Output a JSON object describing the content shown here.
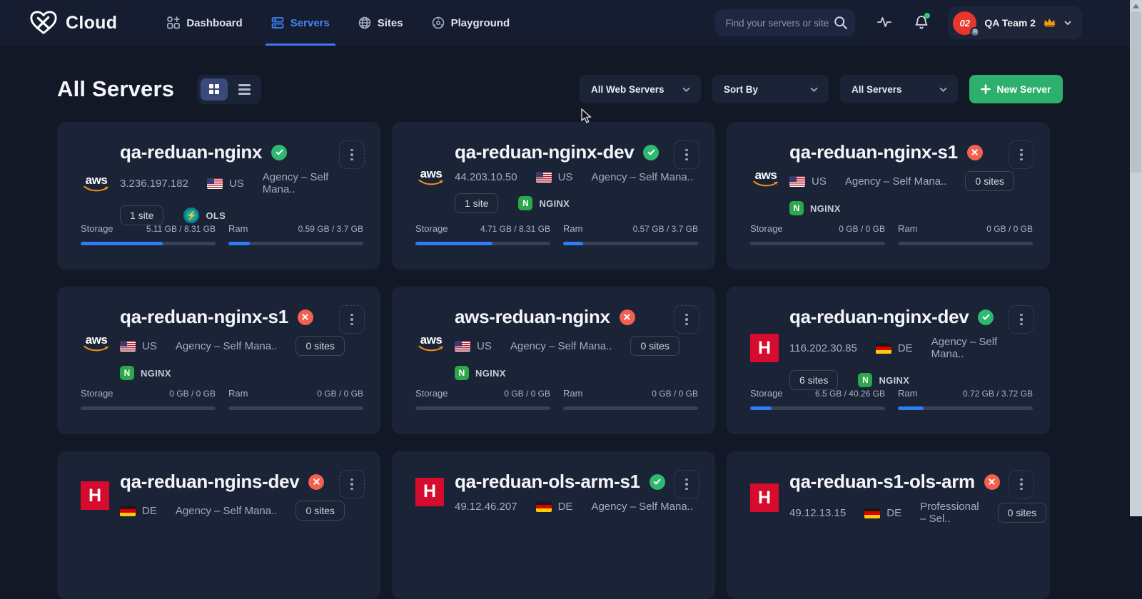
{
  "topbar": {
    "brand": "Cloud",
    "nav": [
      {
        "label": "Dashboard",
        "active": false
      },
      {
        "label": "Servers",
        "active": true
      },
      {
        "label": "Sites",
        "active": false
      },
      {
        "label": "Playground",
        "active": false
      }
    ],
    "search_placeholder": "Find your servers or sites",
    "team": {
      "avatar_text": "02",
      "avatar_badge": "R",
      "name": "QA Team 2"
    }
  },
  "header": {
    "title": "All Servers"
  },
  "filters": {
    "web_servers_label": "All Web Servers",
    "sort_by_label": "Sort By",
    "all_servers_label": "All Servers",
    "new_server_label": "New Server"
  },
  "colors": {
    "accent_blue": "#3c7ef8",
    "progress_blue": "#2e7df6",
    "success_green": "#2eb872",
    "error_red": "#f4604f",
    "button_green": "#2eb06d",
    "hetzner_red": "#d50c2d",
    "card_bg": "#1b2337",
    "page_bg": "#121826"
  },
  "cards": [
    {
      "provider": "aws",
      "logo_text": "aws",
      "name": "qa-reduan-nginx",
      "status": "ok",
      "ip": "3.236.197.182",
      "country": "US",
      "flag": "us",
      "plan": "Agency – Self Mana..",
      "meta_sites": null,
      "badge_sites": "1 site",
      "server_badge": {
        "type": "ols",
        "label": "OLS"
      },
      "storage": {
        "label": "Storage",
        "value": "5.11 GB / 8.31 GB",
        "pct": 61
      },
      "ram": {
        "label": "Ram",
        "value": "0.59 GB / 3.7 GB",
        "pct": 16
      }
    },
    {
      "provider": "aws",
      "logo_text": "aws",
      "name": "qa-reduan-nginx-dev",
      "status": "ok",
      "ip": "44.203.10.50",
      "country": "US",
      "flag": "us",
      "plan": "Agency – Self Mana..",
      "meta_sites": null,
      "badge_sites": "1 site",
      "server_badge": {
        "type": "nginx",
        "label": "NGINX"
      },
      "storage": {
        "label": "Storage",
        "value": "4.71 GB / 8.31 GB",
        "pct": 57
      },
      "ram": {
        "label": "Ram",
        "value": "0.57 GB / 3.7 GB",
        "pct": 15
      }
    },
    {
      "provider": "aws",
      "logo_text": "aws",
      "name": "qa-reduan-nginx-s1",
      "status": "error",
      "ip": null,
      "country": "US",
      "flag": "us",
      "plan": "Agency – Self Mana..",
      "meta_sites": "0 sites",
      "badge_sites": null,
      "server_badge": {
        "type": "nginx",
        "label": "NGINX"
      },
      "storage": {
        "label": "Storage",
        "value": "0 GB / 0 GB",
        "pct": 0
      },
      "ram": {
        "label": "Ram",
        "value": "0 GB / 0 GB",
        "pct": 0
      }
    },
    {
      "provider": "aws",
      "logo_text": "aws",
      "name": "qa-reduan-nginx-s1",
      "status": "error",
      "ip": null,
      "country": "US",
      "flag": "us",
      "plan": "Agency – Self Mana..",
      "meta_sites": "0 sites",
      "badge_sites": null,
      "server_badge": {
        "type": "nginx",
        "label": "NGINX"
      },
      "storage": {
        "label": "Storage",
        "value": "0 GB / 0 GB",
        "pct": 0
      },
      "ram": {
        "label": "Ram",
        "value": "0 GB / 0 GB",
        "pct": 0
      }
    },
    {
      "provider": "aws",
      "logo_text": "aws",
      "name": "aws-reduan-nginx",
      "status": "error",
      "ip": null,
      "country": "US",
      "flag": "us",
      "plan": "Agency – Self Mana..",
      "meta_sites": "0 sites",
      "badge_sites": null,
      "server_badge": {
        "type": "nginx",
        "label": "NGINX"
      },
      "storage": {
        "label": "Storage",
        "value": "0 GB / 0 GB",
        "pct": 0
      },
      "ram": {
        "label": "Ram",
        "value": "0 GB / 0 GB",
        "pct": 0
      }
    },
    {
      "provider": "hetzner",
      "logo_text": "H",
      "name": "qa-reduan-nginx-dev",
      "status": "ok",
      "ip": "116.202.30.85",
      "country": "DE",
      "flag": "de",
      "plan": "Agency – Self Mana..",
      "meta_sites": null,
      "badge_sites": "6 sites",
      "server_badge": {
        "type": "nginx",
        "label": "NGINX"
      },
      "storage": {
        "label": "Storage",
        "value": "6.5 GB / 40.26 GB",
        "pct": 16
      },
      "ram": {
        "label": "Ram",
        "value": "0.72 GB / 3.72 GB",
        "pct": 19
      }
    },
    {
      "provider": "hetzner",
      "logo_text": "H",
      "name": "qa-reduan-ngins-dev",
      "status": "error",
      "ip": null,
      "country": "DE",
      "flag": "de",
      "plan": "Agency – Self Mana..",
      "meta_sites": "0 sites",
      "badge_sites": null,
      "server_badge": null,
      "storage": null,
      "ram": null
    },
    {
      "provider": "hetzner",
      "logo_text": "H",
      "name": "qa-reduan-ols-arm-s1",
      "status": "ok",
      "ip": "49.12.46.207",
      "country": "DE",
      "flag": "de",
      "plan": "Agency – Self Mana..",
      "meta_sites": null,
      "badge_sites": null,
      "server_badge": null,
      "storage": null,
      "ram": null
    },
    {
      "provider": "hetzner",
      "logo_text": "H",
      "name": "qa-reduan-s1-ols-arm",
      "status": "error",
      "ip": "49.12.13.15",
      "country": "DE",
      "flag": "de",
      "plan": "Professional – Sel..",
      "meta_sites": "0 sites",
      "badge_sites": null,
      "server_badge": null,
      "storage": null,
      "ram": null
    }
  ]
}
